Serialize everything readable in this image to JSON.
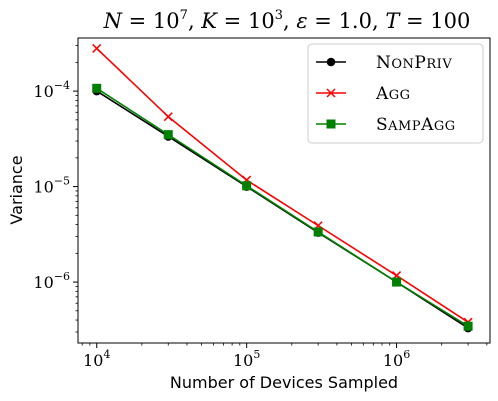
{
  "chart_data": {
    "type": "line",
    "title": "N = 10^7, K = 10^3, ε = 1.0, T = 100",
    "title_parts": {
      "n_label": "N",
      "n_base": "10",
      "n_exp": "7",
      "k_label": "K",
      "k_base": "10",
      "k_exp": "3",
      "eps_label": "ε",
      "eps_value": "1.0",
      "t_label": "T",
      "t_value": "100"
    },
    "xlabel": "Number of Devices Sampled",
    "ylabel": "Variance",
    "x_scale": "log",
    "y_scale": "log",
    "xlim": [
      7500,
      4200000
    ],
    "ylim": [
      2.3e-07,
      0.00036
    ],
    "x_ticks": [
      {
        "value": 10000,
        "base": "10",
        "exp": "4"
      },
      {
        "value": 100000,
        "base": "10",
        "exp": "5"
      },
      {
        "value": 1000000,
        "base": "10",
        "exp": "6"
      }
    ],
    "y_ticks": [
      {
        "value": 1e-06,
        "base": "10",
        "exp": "−6"
      },
      {
        "value": 1e-05,
        "base": "10",
        "exp": "−5"
      },
      {
        "value": 0.0001,
        "base": "10",
        "exp": "−4"
      }
    ],
    "x": [
      10000,
      30000,
      100000,
      300000,
      1000000,
      3000000
    ],
    "series": [
      {
        "name": "NonPriv",
        "legend_label": "NONPRIV",
        "color": "#000000",
        "marker": "circle",
        "values": [
          0.0001,
          3.35e-05,
          1e-05,
          3.3e-06,
          1e-06,
          3.3e-07
        ]
      },
      {
        "name": "Agg",
        "legend_label": "AGG",
        "color": "#ff0000",
        "marker": "x",
        "values": [
          0.00028,
          5.4e-05,
          1.17e-05,
          3.9e-06,
          1.17e-06,
          3.8e-07
        ]
      },
      {
        "name": "SampAgg",
        "legend_label": "SAMPAGG",
        "color": "#008000",
        "marker": "square",
        "values": [
          0.000107,
          3.5e-05,
          1.02e-05,
          3.35e-06,
          1e-06,
          3.45e-07
        ]
      }
    ],
    "legend_position": "top-right",
    "grid": false
  }
}
